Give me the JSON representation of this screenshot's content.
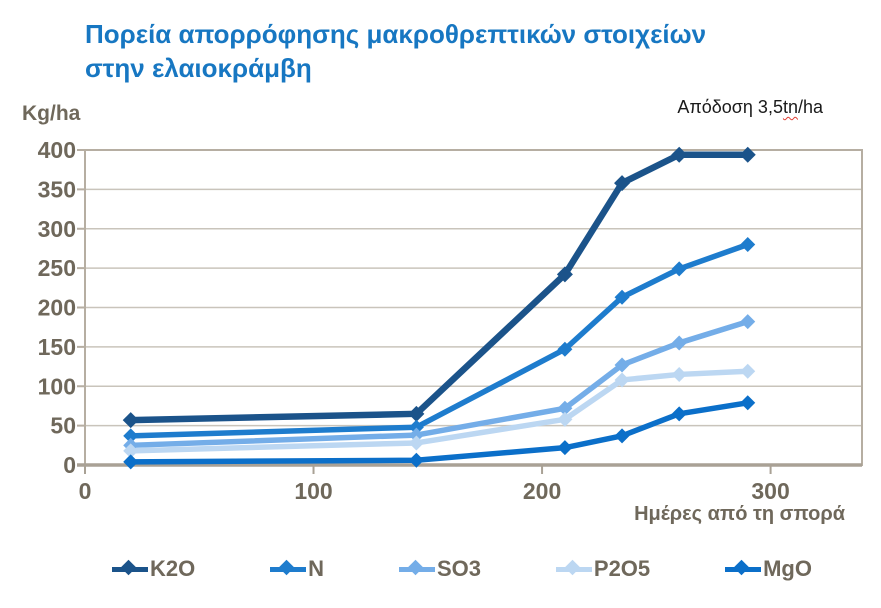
{
  "header": {
    "title": "Πορεία απορρόφησης μακροθρεπτικών στοιχείων στην ελαιοκράμβη",
    "title_color": "#1777C2"
  },
  "annotation": {
    "text_before": "Απόδοση 3,5",
    "text_underlined": "tn",
    "text_after": "/ha",
    "full_text": "Απόδοση 3,5tn/ha",
    "underline_color": "#E03C31"
  },
  "axes": {
    "y_unit_label": "Kg/ha",
    "x_axis_title": "Ημέρες από τη σπορά",
    "label_color": "#6F685B"
  },
  "style_colors": {
    "grid_line": "#C9C4BB",
    "plot_border": "#B6AEA2",
    "axis_line": "#A9A195",
    "tick_text": "#6F685B"
  },
  "chart_data": {
    "type": "line",
    "title": "Πορεία απορρόφησης μακροθρεπτικών στοιχείων στην ελαιοκράμβη",
    "xlabel": "Ημέρες από τη σπορά",
    "ylabel": "Kg/ha",
    "annotation": "Απόδοση 3,5tn/ha",
    "x": [
      20,
      145,
      210,
      235,
      260,
      290
    ],
    "xlim": [
      0,
      340
    ],
    "ylim": [
      0,
      400
    ],
    "x_tick_values": [
      0,
      100,
      200,
      300
    ],
    "y_tick_values": [
      0,
      50,
      100,
      150,
      200,
      250,
      300,
      350,
      400
    ],
    "grid": true,
    "legend_position": "bottom",
    "marker": "diamond",
    "series": [
      {
        "name": "K2O",
        "color": "#1B538A",
        "values": [
          57,
          65,
          242,
          358,
          394,
          394
        ]
      },
      {
        "name": "N",
        "color": "#1E7CCD",
        "values": [
          37,
          48,
          147,
          213,
          249,
          280
        ]
      },
      {
        "name": "SO3",
        "color": "#74ADE8",
        "values": [
          25,
          38,
          72,
          127,
          155,
          182
        ]
      },
      {
        "name": "P2O5",
        "color": "#BCD7F2",
        "values": [
          18,
          28,
          58,
          108,
          115,
          119
        ]
      },
      {
        "name": "MgO",
        "color": "#0B6FC9",
        "values": [
          4,
          6,
          22,
          37,
          65,
          79
        ]
      }
    ]
  }
}
